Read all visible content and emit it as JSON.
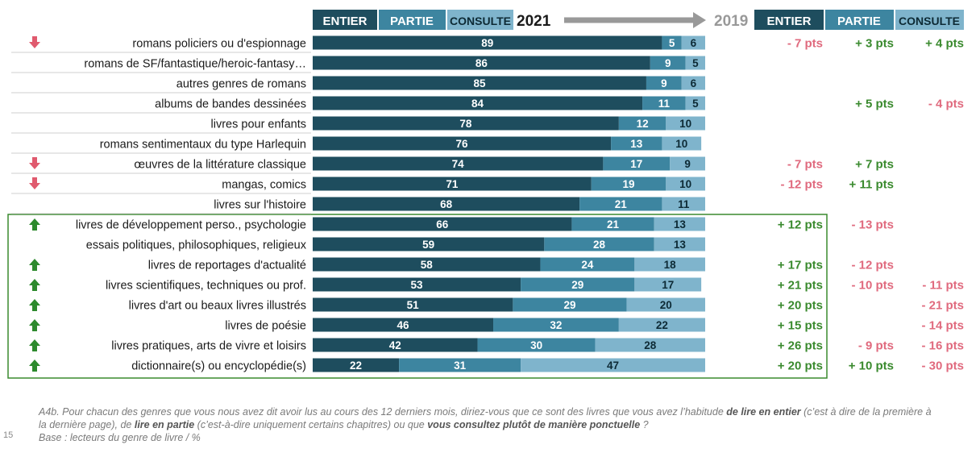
{
  "header": {
    "year_current": "2021",
    "year_previous": "2019",
    "col_labels": [
      "ENTIER",
      "PARTIE",
      "CONSULTE"
    ]
  },
  "colors": {
    "entier": "#1e4d5e",
    "partie": "#3d85a0",
    "consulte": "#7fb4cc",
    "positive": "#3a8a2e",
    "negative": "#e06a7e",
    "arrow_down": "#e05a6e",
    "arrow_up": "#2d8a2d",
    "highlight_box": "#3a8a2e",
    "header_arrow": "#999999"
  },
  "chart_data": {
    "type": "bar",
    "orientation": "horizontal",
    "stacked": true,
    "unit": "%",
    "categories": [
      "romans policiers ou d'espionnage",
      "romans de SF/fantastique/heroic-fantasy…",
      "autres genres de romans",
      "albums de bandes dessinées",
      "livres pour enfants",
      "romans sentimentaux du type Harlequin",
      "œuvres de la littérature classique",
      "mangas, comics",
      "livres sur l'histoire",
      "livres de développement perso., psychologie",
      "essais politiques, philosophiques, religieux",
      "livres de reportages d'actualité",
      "livres scientifiques, techniques ou prof.",
      "livres d'art ou beaux livres illustrés",
      "livres de poésie",
      "livres pratiques, arts de vivre et loisirs",
      "dictionnaire(s) ou encyclopédie(s)"
    ],
    "series": [
      {
        "name": "ENTIER",
        "values": [
          89,
          86,
          85,
          84,
          78,
          76,
          74,
          71,
          68,
          66,
          59,
          58,
          53,
          51,
          46,
          42,
          22
        ]
      },
      {
        "name": "PARTIE",
        "values": [
          5,
          9,
          9,
          11,
          12,
          13,
          17,
          19,
          21,
          21,
          28,
          24,
          29,
          29,
          32,
          30,
          31
        ]
      },
      {
        "name": "CONSULTE",
        "values": [
          6,
          5,
          6,
          5,
          10,
          10,
          9,
          10,
          11,
          13,
          13,
          18,
          17,
          20,
          22,
          28,
          47
        ]
      }
    ],
    "xlim": [
      0,
      100
    ],
    "evolution_vs_2019": {
      "entier": [
        "- 7 pts",
        "",
        "",
        "",
        "",
        "",
        "- 7 pts",
        "- 12 pts",
        "",
        "+ 12 pts",
        "",
        "+ 17 pts",
        "+ 21 pts",
        "+ 20 pts",
        "+ 15 pts",
        "+ 26 pts",
        "+ 20 pts"
      ],
      "partie": [
        "+ 3 pts",
        "",
        "",
        "+ 5 pts",
        "",
        "",
        "+ 7 pts",
        "+ 11 pts",
        "",
        "- 13 pts",
        "",
        "- 12 pts",
        "- 10 pts",
        "",
        "",
        "- 9 pts",
        "+ 10 pts"
      ],
      "consulte": [
        "+ 4 pts",
        "",
        "",
        "- 4 pts",
        "",
        "",
        "",
        "",
        "",
        "",
        "",
        "",
        "- 11 pts",
        "- 21 pts",
        "- 14 pts",
        "- 16 pts",
        "- 30 pts"
      ]
    },
    "trend_arrows": [
      "down",
      "",
      "",
      "",
      "",
      "",
      "down",
      "down",
      "",
      "up",
      "",
      "up",
      "up",
      "up",
      "up",
      "up",
      "up"
    ],
    "highlighted_rows": [
      9,
      16
    ]
  },
  "footnote": {
    "part1": "A4b. Pour chacun des genres que vous nous avez dit avoir lus au cours des 12 derniers mois, diriez-vous que ce sont des livres que vous avez l’habitude ",
    "bold1": "de lire en entier",
    "part2": " (c’est à dire de la première à la dernière page), de ",
    "bold2": "lire en partie",
    "part3": " (c’est-à-dire uniquement certains chapitres) ou que ",
    "bold3": "vous consultez plutôt de manière ponctuelle",
    "part4": " ?",
    "base": "Base : lecteurs du genre de livre / %"
  },
  "page_number": "15"
}
